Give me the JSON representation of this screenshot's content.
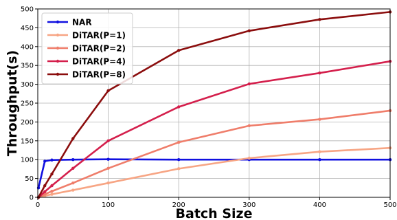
{
  "chart_data": {
    "type": "line",
    "xlabel": "Batch Size",
    "ylabel": "Throughput(s)",
    "xlim": [
      0,
      500
    ],
    "ylim": [
      0,
      500
    ],
    "xticks": [
      0,
      100,
      200,
      300,
      400,
      500
    ],
    "yticks": [
      0,
      50,
      100,
      150,
      200,
      250,
      300,
      350,
      400,
      450,
      500
    ],
    "grid": true,
    "legend_position": "top-left",
    "series": [
      {
        "name": "NAR",
        "color": "#1010e0",
        "x": [
          1,
          10,
          20,
          50,
          100,
          200,
          300,
          400,
          500
        ],
        "y": [
          25,
          96,
          99,
          100,
          101,
          100,
          100,
          100,
          100
        ]
      },
      {
        "name": "DiTAR(P=1)",
        "color": "#f7a584",
        "x": [
          1,
          10,
          20,
          50,
          100,
          200,
          300,
          400,
          500
        ],
        "y": [
          0,
          4,
          8,
          19,
          38,
          76,
          104,
          121,
          131
        ]
      },
      {
        "name": "DiTAR(P=2)",
        "color": "#ef7d6a",
        "x": [
          1,
          10,
          20,
          50,
          100,
          200,
          300,
          400,
          500
        ],
        "y": [
          0,
          8,
          16,
          38,
          77,
          146,
          190,
          207,
          230
        ]
      },
      {
        "name": "DiTAR(P=4)",
        "color": "#d41f4c",
        "x": [
          1,
          10,
          20,
          50,
          100,
          200,
          300,
          400,
          500
        ],
        "y": [
          0,
          15,
          31,
          77,
          150,
          240,
          301,
          330,
          361
        ]
      },
      {
        "name": "DiTAR(P=8)",
        "color": "#8b0d0d",
        "x": [
          1,
          10,
          20,
          50,
          100,
          200,
          300,
          400,
          500
        ],
        "y": [
          0,
          31,
          62,
          156,
          283,
          390,
          442,
          472,
          492
        ]
      }
    ]
  }
}
